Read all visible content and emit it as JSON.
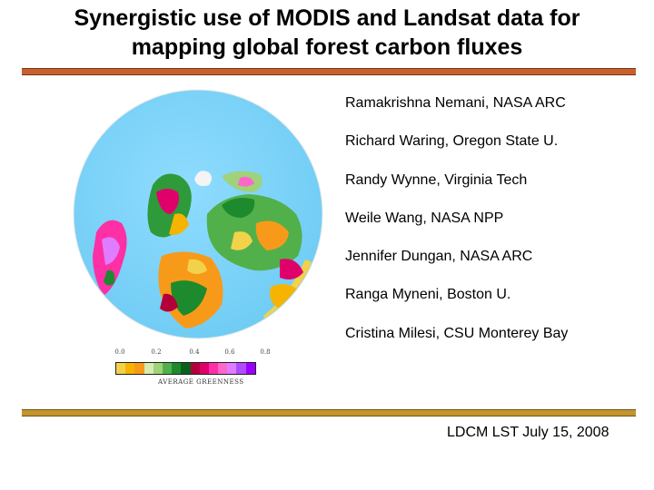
{
  "slide": {
    "title_line1": "Synergistic use of MODIS and Landsat data for",
    "title_line2": "mapping global forest carbon fluxes",
    "authors": [
      "Ramakrishna Nemani, NASA ARC",
      "Richard Waring, Oregon State U.",
      "Randy Wynne, Virginia Tech",
      "Weile Wang, NASA NPP",
      "Jennifer Dungan, NASA ARC",
      "Ranga Myneni, Boston U.",
      "Cristina Milesi, CSU Monterey Bay"
    ],
    "footer": "LDCM LST July 15, 2008"
  },
  "legend": {
    "ticks": [
      "0.0",
      "0.2",
      "0.4",
      "0.6",
      "0.8"
    ],
    "label": "AVERAGE GREENNESS",
    "colors": [
      "#f2d24a",
      "#f6b400",
      "#f79a1a",
      "#d7ecb0",
      "#9fd27a",
      "#52b04a",
      "#1e8a2e",
      "#0a5f1c",
      "#b3003a",
      "#e0006a",
      "#ff2fa5",
      "#ff66cc",
      "#e07cff",
      "#b24bff",
      "#9a00ff"
    ]
  },
  "colors": {
    "ocean": "#7fd3f6",
    "title_rule": "#c8602c",
    "footer_rule": "#c4952e"
  },
  "icons": {
    "globe": "ndvi-globe-map-icon"
  }
}
